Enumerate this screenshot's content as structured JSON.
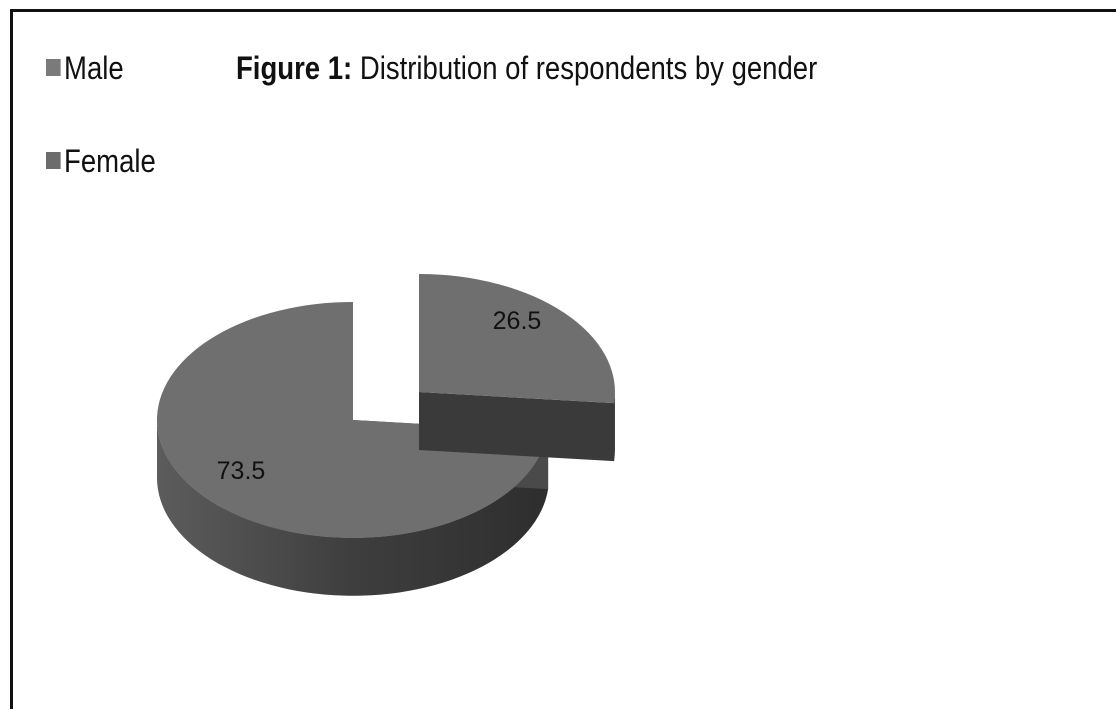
{
  "chart_data": {
    "type": "pie",
    "title_bold": "Figure 1:",
    "title": "Distribution of respondents by gender",
    "categories": [
      "Male",
      "Female"
    ],
    "values": [
      26.5,
      73.5
    ],
    "data_labels": [
      "26.5",
      "73.5"
    ],
    "legend_position": "top-left",
    "style": "3d-exploded",
    "colors": {
      "male_swatch": "#7a7a7a",
      "female_swatch": "#6c6c6c",
      "slice_top": "#6f6f6f",
      "slice_side": "#3a3a3a"
    }
  }
}
